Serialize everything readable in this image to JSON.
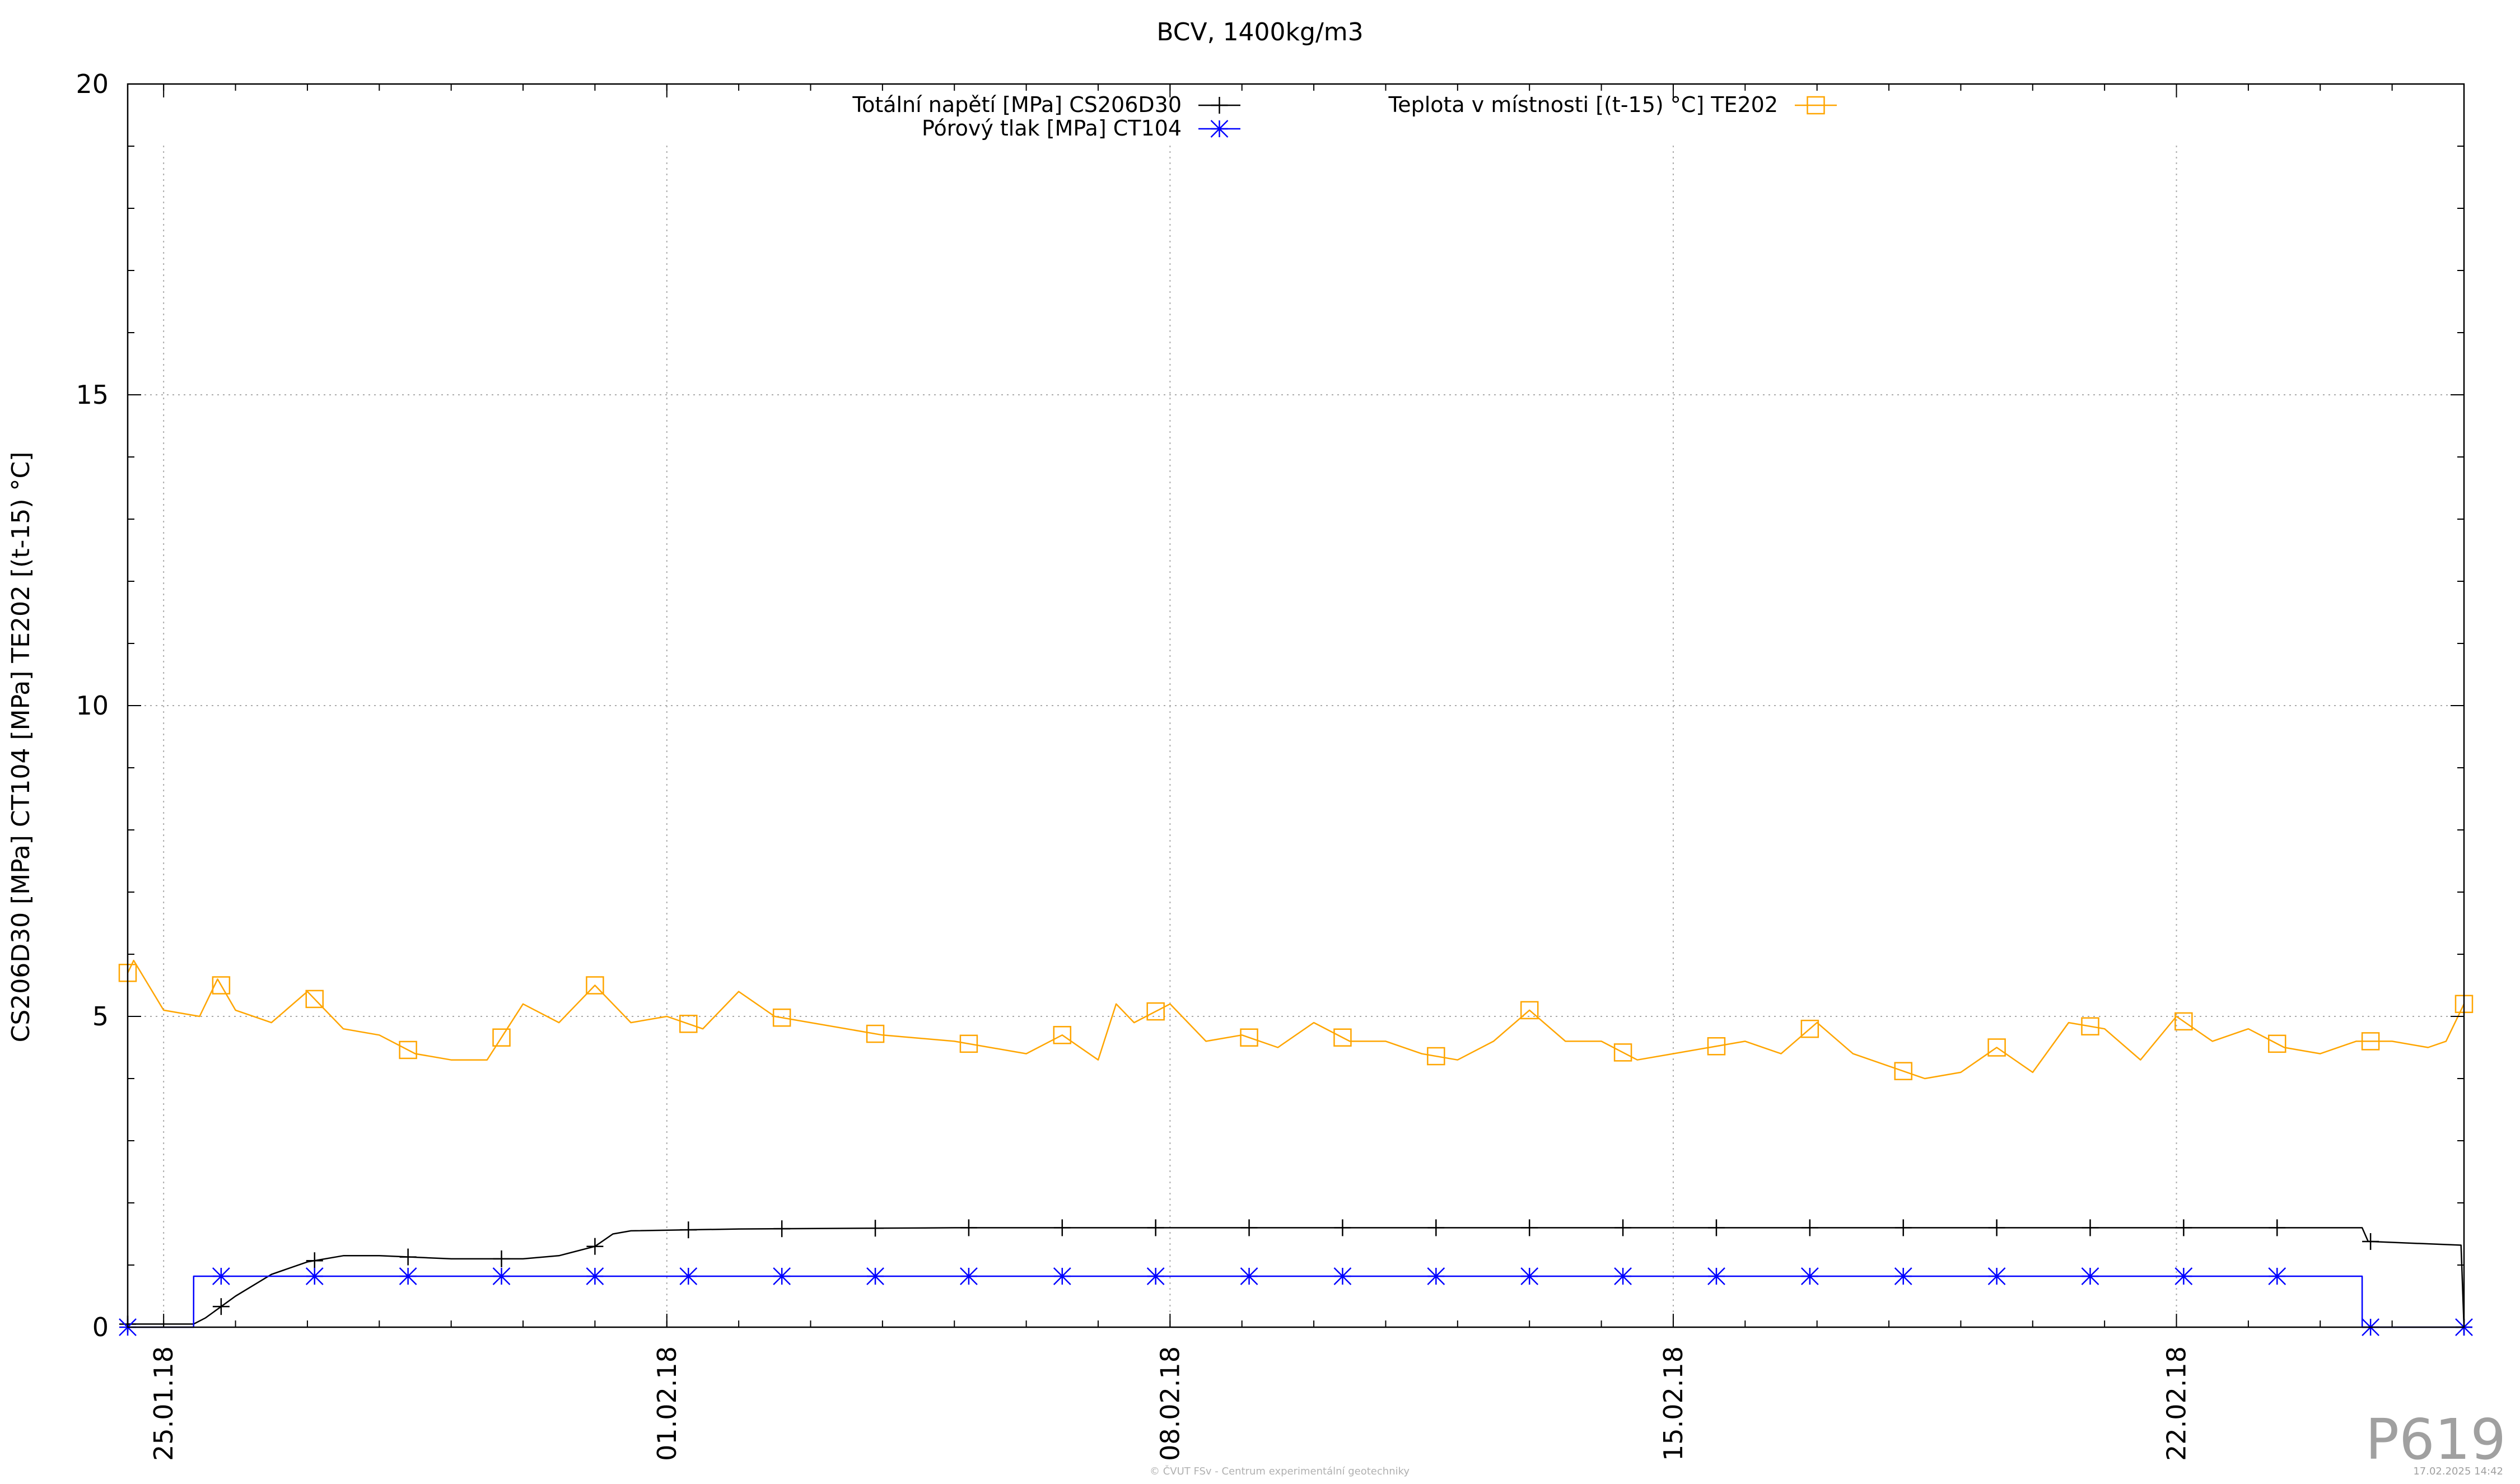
{
  "chart_data": {
    "type": "line",
    "title": "BCV, 1400kg/m3",
    "ylabel": "CS206D30 [MPa] CT104 [MPa] TE202 [(t-15) °C]",
    "xlabel": "",
    "xlim": [
      "2018-01-24T12:00",
      "2018-02-26T00:00"
    ],
    "ylim": [
      0,
      20
    ],
    "y_ticks": [
      "0",
      "5",
      "10",
      "15",
      "20"
    ],
    "x_ticks": [
      {
        "date": "2018-01-25",
        "label": "25.01.18"
      },
      {
        "date": "2018-02-01",
        "label": "01.02.18"
      },
      {
        "date": "2018-02-08",
        "label": "08.02.18"
      },
      {
        "date": "2018-02-15",
        "label": "15.02.18"
      },
      {
        "date": "2018-02-22",
        "label": "22.02.18"
      }
    ],
    "grid": true,
    "legend_position": "top",
    "series": [
      {
        "name": "Totální napětí [MPa] CS206D30",
        "color": "#000000",
        "marker": "plus",
        "points": [
          [
            "2018-01-24T12:00",
            0.05
          ],
          [
            "2018-01-25T10:00",
            0.05
          ],
          [
            "2018-01-25T14:00",
            0.15
          ],
          [
            "2018-01-26T00:00",
            0.5
          ],
          [
            "2018-01-26T12:00",
            0.85
          ],
          [
            "2018-01-27T00:00",
            1.05
          ],
          [
            "2018-01-27T12:00",
            1.15
          ],
          [
            "2018-01-28T00:00",
            1.15
          ],
          [
            "2018-01-29T00:00",
            1.1
          ],
          [
            "2018-01-30T00:00",
            1.1
          ],
          [
            "2018-01-30T12:00",
            1.15
          ],
          [
            "2018-01-31T00:00",
            1.3
          ],
          [
            "2018-01-31T06:00",
            1.5
          ],
          [
            "2018-01-31T12:00",
            1.55
          ],
          [
            "2018-02-02T00:00",
            1.58
          ],
          [
            "2018-02-05T00:00",
            1.6
          ],
          [
            "2018-02-10T00:00",
            1.6
          ],
          [
            "2018-02-15T00:00",
            1.6
          ],
          [
            "2018-02-20T00:00",
            1.6
          ],
          [
            "2018-02-23T00:00",
            1.6
          ],
          [
            "2018-02-24T14:00",
            1.6
          ],
          [
            "2018-02-24T16:00",
            1.38
          ],
          [
            "2018-02-25T23:00",
            1.32
          ],
          [
            "2018-02-26T00:00",
            0.0
          ]
        ]
      },
      {
        "name": "Pórový tlak [MPa] CT104",
        "color": "#0000ff",
        "marker": "asterisk",
        "points": [
          [
            "2018-01-24T12:00",
            0.0
          ],
          [
            "2018-01-25T10:00",
            0.0
          ],
          [
            "2018-01-25T10:01",
            0.82
          ],
          [
            "2018-02-24T14:00",
            0.82
          ],
          [
            "2018-02-24T14:01",
            0.0
          ],
          [
            "2018-02-26T00:00",
            0.0
          ]
        ]
      },
      {
        "name": "Teplota v místnosti [(t-15) °C] TE202",
        "color": "#ffa500",
        "marker": "square",
        "points": [
          [
            "2018-01-24T12:00",
            5.7
          ],
          [
            "2018-01-24T14:00",
            5.9
          ],
          [
            "2018-01-25T00:00",
            5.1
          ],
          [
            "2018-01-25T12:00",
            5.0
          ],
          [
            "2018-01-25T18:00",
            5.6
          ],
          [
            "2018-01-26T00:00",
            5.1
          ],
          [
            "2018-01-26T12:00",
            4.9
          ],
          [
            "2018-01-27T00:00",
            5.4
          ],
          [
            "2018-01-27T12:00",
            4.8
          ],
          [
            "2018-01-28T00:00",
            4.7
          ],
          [
            "2018-01-28T12:00",
            4.4
          ],
          [
            "2018-01-29T00:00",
            4.3
          ],
          [
            "2018-01-29T12:00",
            4.3
          ],
          [
            "2018-01-30T00:00",
            5.2
          ],
          [
            "2018-01-30T12:00",
            4.9
          ],
          [
            "2018-01-31T00:00",
            5.5
          ],
          [
            "2018-01-31T12:00",
            4.9
          ],
          [
            "2018-02-01T00:00",
            5.0
          ],
          [
            "2018-02-01T12:00",
            4.8
          ],
          [
            "2018-02-02T00:00",
            5.4
          ],
          [
            "2018-02-02T12:00",
            5.0
          ],
          [
            "2018-02-03T00:00",
            4.9
          ],
          [
            "2018-02-04T00:00",
            4.7
          ],
          [
            "2018-02-05T00:00",
            4.6
          ],
          [
            "2018-02-06T00:00",
            4.4
          ],
          [
            "2018-02-06T12:00",
            4.7
          ],
          [
            "2018-02-07T00:00",
            4.3
          ],
          [
            "2018-02-07T06:00",
            5.2
          ],
          [
            "2018-02-07T12:00",
            4.9
          ],
          [
            "2018-02-08T00:00",
            5.2
          ],
          [
            "2018-02-08T12:00",
            4.6
          ],
          [
            "2018-02-09T00:00",
            4.7
          ],
          [
            "2018-02-09T12:00",
            4.5
          ],
          [
            "2018-02-10T00:00",
            4.9
          ],
          [
            "2018-02-10T12:00",
            4.6
          ],
          [
            "2018-02-11T00:00",
            4.6
          ],
          [
            "2018-02-11T12:00",
            4.4
          ],
          [
            "2018-02-12T00:00",
            4.3
          ],
          [
            "2018-02-12T12:00",
            4.6
          ],
          [
            "2018-02-13T00:00",
            5.1
          ],
          [
            "2018-02-13T12:00",
            4.6
          ],
          [
            "2018-02-14T00:00",
            4.6
          ],
          [
            "2018-02-14T12:00",
            4.3
          ],
          [
            "2018-02-15T00:00",
            4.4
          ],
          [
            "2018-02-15T12:00",
            4.5
          ],
          [
            "2018-02-16T00:00",
            4.6
          ],
          [
            "2018-02-16T12:00",
            4.4
          ],
          [
            "2018-02-17T00:00",
            4.9
          ],
          [
            "2018-02-17T12:00",
            4.4
          ],
          [
            "2018-02-18T00:00",
            4.2
          ],
          [
            "2018-02-18T12:00",
            4.0
          ],
          [
            "2018-02-19T00:00",
            4.1
          ],
          [
            "2018-02-19T12:00",
            4.5
          ],
          [
            "2018-02-20T00:00",
            4.1
          ],
          [
            "2018-02-20T12:00",
            4.9
          ],
          [
            "2018-02-21T00:00",
            4.8
          ],
          [
            "2018-02-21T12:00",
            4.3
          ],
          [
            "2018-02-22T00:00",
            5.0
          ],
          [
            "2018-02-22T12:00",
            4.6
          ],
          [
            "2018-02-23T00:00",
            4.8
          ],
          [
            "2018-02-23T12:00",
            4.5
          ],
          [
            "2018-02-24T00:00",
            4.4
          ],
          [
            "2018-02-24T12:00",
            4.6
          ],
          [
            "2018-02-25T00:00",
            4.6
          ],
          [
            "2018-02-25T12:00",
            4.5
          ],
          [
            "2018-02-25T18:00",
            4.6
          ],
          [
            "2018-02-26T00:00",
            5.2
          ]
        ]
      }
    ]
  },
  "watermark": "P619",
  "footer_center": "© ČVUT FSv - Centrum experimentální geotechniky",
  "footer_right": "17.02.2025 14:42"
}
